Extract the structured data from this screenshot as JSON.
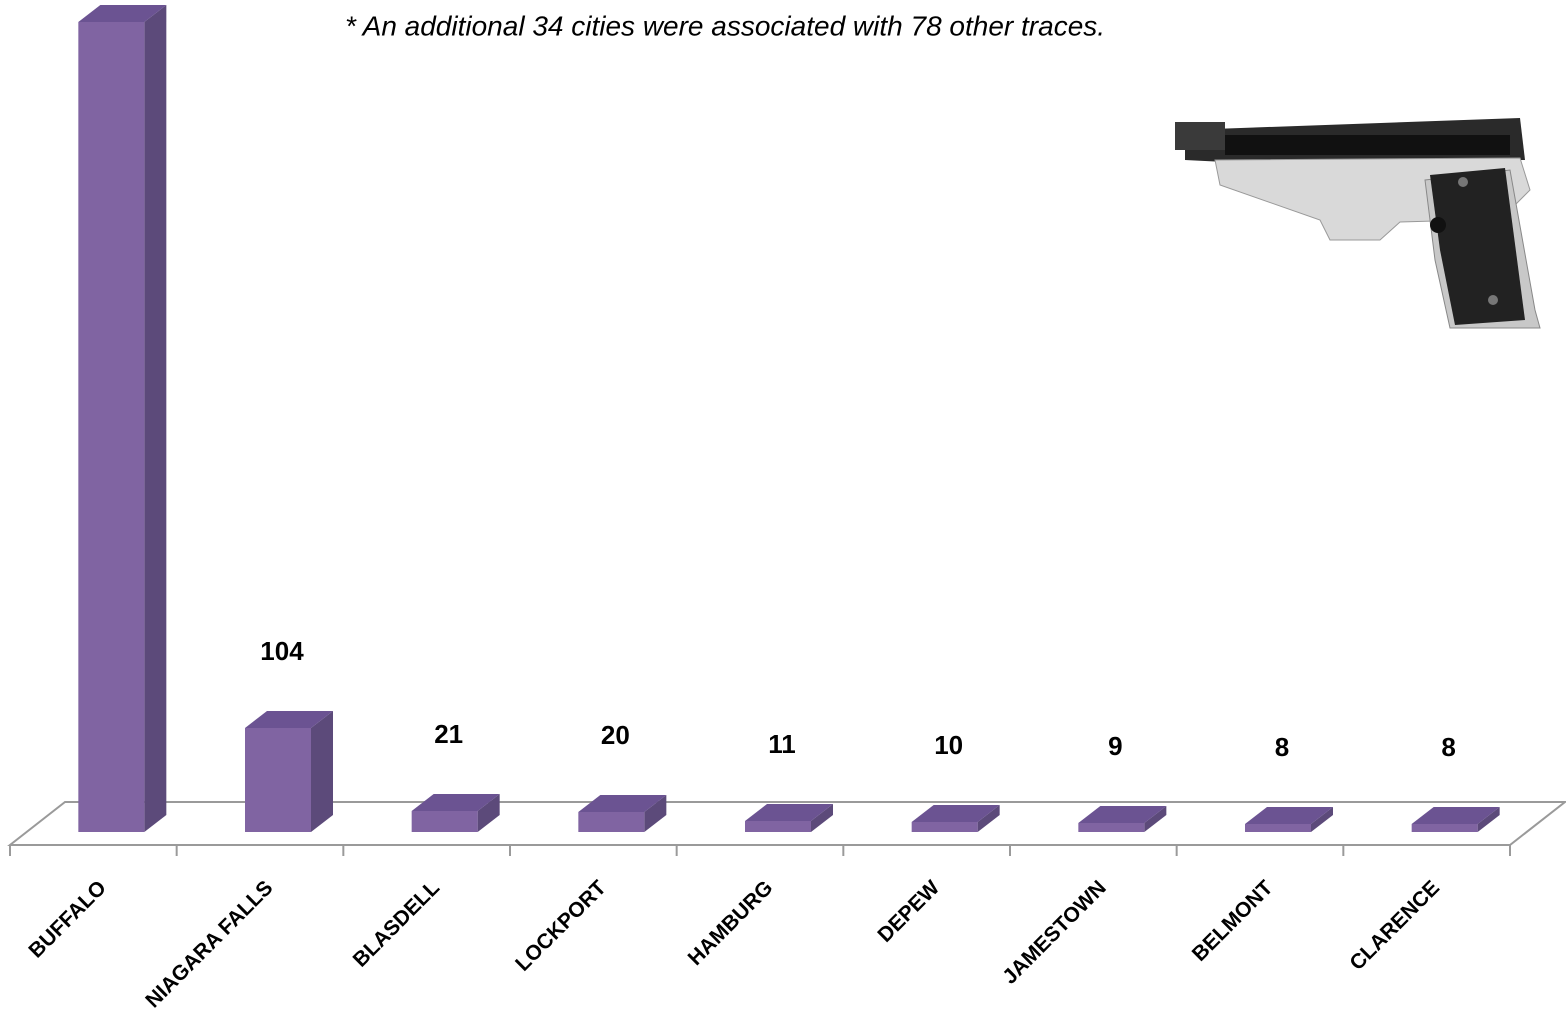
{
  "chart_data": {
    "type": "bar3d",
    "annotation": "* An additional 34 cities were associated with 78 other traces.",
    "categories": [
      "BUFFALO",
      "NIAGARA FALLS",
      "BLASDELL",
      "LOCKPORT",
      "HAMBURG",
      "DEPEW",
      "JAMESTOWN",
      "BELMONT",
      "CLARENCE"
    ],
    "values": [
      810,
      104,
      21,
      20,
      11,
      10,
      9,
      8,
      8
    ],
    "value_labels": [
      null,
      "104",
      "21",
      "20",
      "11",
      "10",
      "9",
      "8",
      "8"
    ],
    "color": "#8064a2"
  }
}
